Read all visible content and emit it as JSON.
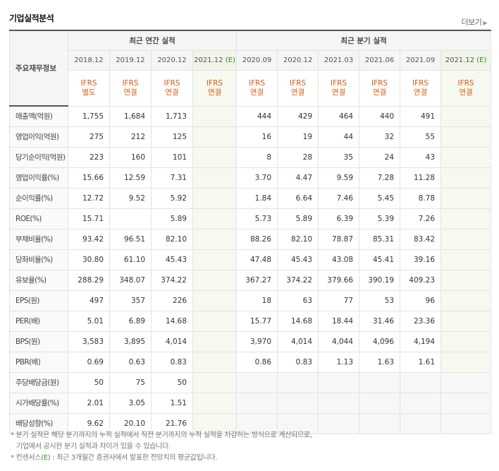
{
  "section_title": "기업실적분석",
  "more_label": "더보기",
  "group_annual": "최근 연간 실적",
  "group_quarter": "최근 분기 실적",
  "corner_label": "주요재무정보",
  "estimate_mark": "(E)",
  "periods": [
    {
      "date": "2018.12",
      "std": [
        "IFRS",
        "별도"
      ],
      "est": false
    },
    {
      "date": "2019.12",
      "std": [
        "IFRS",
        "연결"
      ],
      "est": false
    },
    {
      "date": "2020.12",
      "std": [
        "IFRS",
        "연결"
      ],
      "est": false
    },
    {
      "date": "2021.12",
      "std": [
        "IFRS",
        "연결"
      ],
      "est": true
    },
    {
      "date": "2020.09",
      "std": [
        "IFRS",
        "연결"
      ],
      "est": false
    },
    {
      "date": "2020.12",
      "std": [
        "IFRS",
        "연결"
      ],
      "est": false
    },
    {
      "date": "2021.03",
      "std": [
        "IFRS",
        "연결"
      ],
      "est": false
    },
    {
      "date": "2021.06",
      "std": [
        "IFRS",
        "연결"
      ],
      "est": false
    },
    {
      "date": "2021.09",
      "std": [
        "IFRS",
        "연결"
      ],
      "est": false
    },
    {
      "date": "2021.12",
      "std": [
        "IFRS",
        "연결"
      ],
      "est": true
    }
  ],
  "rows": [
    {
      "label": "매출액(억원)",
      "values": [
        "1,755",
        "1,684",
        "1,713",
        "",
        "444",
        "429",
        "464",
        "440",
        "491",
        ""
      ]
    },
    {
      "label": "영업이익(억원)",
      "values": [
        "275",
        "212",
        "125",
        "",
        "16",
        "19",
        "44",
        "32",
        "55",
        ""
      ]
    },
    {
      "label": "당기순이익(억원)",
      "values": [
        "223",
        "160",
        "101",
        "",
        "8",
        "28",
        "35",
        "24",
        "43",
        ""
      ]
    },
    {
      "label": "영업이익률(%)",
      "values": [
        "15.66",
        "12.59",
        "7.31",
        "",
        "3.70",
        "4.47",
        "9.59",
        "7.28",
        "11.28",
        ""
      ]
    },
    {
      "label": "순이익률(%)",
      "values": [
        "12.72",
        "9.52",
        "5.92",
        "",
        "1.84",
        "6.64",
        "7.46",
        "5.45",
        "8.78",
        ""
      ]
    },
    {
      "label": "ROE(%)",
      "values": [
        "15.71",
        "",
        "5.89",
        "",
        "5.73",
        "5.89",
        "6.39",
        "5.39",
        "7.26",
        ""
      ]
    },
    {
      "label": "부채비율(%)",
      "values": [
        "93.42",
        "96.51",
        "82.10",
        "",
        "88.26",
        "82.10",
        "78.87",
        "85.31",
        "83.42",
        ""
      ]
    },
    {
      "label": "당좌비율(%)",
      "values": [
        "30.80",
        "61.10",
        "45.43",
        "",
        "47.48",
        "45.43",
        "43.08",
        "45.41",
        "39.16",
        ""
      ]
    },
    {
      "label": "유보율(%)",
      "values": [
        "288.29",
        "348.07",
        "374.22",
        "",
        "367.27",
        "374.22",
        "379.66",
        "390.19",
        "409.23",
        ""
      ]
    },
    {
      "label": "EPS(원)",
      "values": [
        "497",
        "357",
        "226",
        "",
        "18",
        "63",
        "77",
        "53",
        "96",
        ""
      ]
    },
    {
      "label": "PER(배)",
      "values": [
        "5.01",
        "6.89",
        "14.68",
        "",
        "15.77",
        "14.68",
        "18.44",
        "31.46",
        "23.36",
        ""
      ]
    },
    {
      "label": "BPS(원)",
      "values": [
        "3,583",
        "3,895",
        "4,014",
        "",
        "3,970",
        "4,014",
        "4,044",
        "4,096",
        "4,194",
        ""
      ]
    },
    {
      "label": "PBR(배)",
      "values": [
        "0.69",
        "0.63",
        "0.83",
        "",
        "0.86",
        "0.83",
        "1.13",
        "1.63",
        "1.61",
        ""
      ]
    },
    {
      "label": "주당배당금(원)",
      "values": [
        "50",
        "75",
        "50",
        "",
        "",
        "",
        "",
        "",
        "",
        ""
      ]
    },
    {
      "label": "시가배당률(%)",
      "values": [
        "2.01",
        "3.05",
        "1.51",
        "",
        "",
        "",
        "",
        "",
        "",
        ""
      ]
    },
    {
      "label": "배당성향(%)",
      "values": [
        "9.62",
        "20.10",
        "21.76",
        "",
        "",
        "",
        "",
        "",
        "",
        ""
      ]
    }
  ],
  "separator_before": [
    3,
    6,
    9,
    13
  ],
  "no_quarter_data_rows": [
    13,
    14,
    15
  ],
  "notes": {
    "line1": "* 분기 실적은 해당 분기까지의 누적 실적에서 직전 분기까지의 누적 실적을 차감하는 방식으로 계산되므로,",
    "line2": "기업에서 공시한 분기 실적과 차이가 있을 수 있습니다.",
    "line3_prefix": "* 컨센서스",
    "line3_mark": "(E)",
    "line3_suffix": " : 최근 3개월간 증권사에서 발표한 전망치의 평균값입니다."
  },
  "colors": {
    "standard_label": "#e05a0f",
    "estimate_mark": "#3b8a2f",
    "estimate_bg": "#f5f9ef"
  }
}
